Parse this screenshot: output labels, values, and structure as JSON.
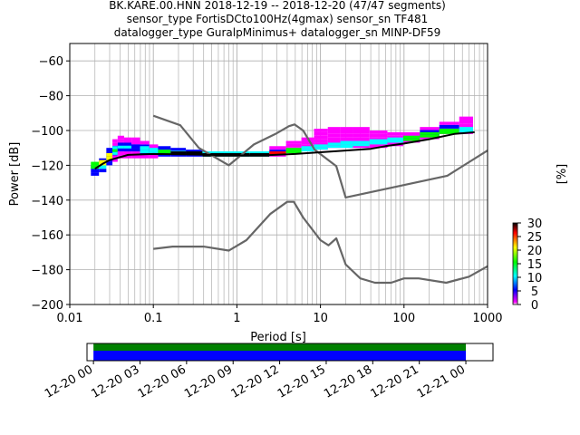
{
  "title": {
    "line1": "BK.KARE.00.HNN   2018-12-19 -- 2018-12-20  (47/47 segments)",
    "line2": "sensor_type FortisDCto100Hz(4gmax) sensor_sn TF481",
    "line3": "datalogger_type GuralpMinimus+ datalogger_sn MINP-DF59"
  },
  "chart_data": [
    {
      "type": "heatmap",
      "xlabel": "Period [s]",
      "ylabel": "Power [dB]",
      "xscale": "log",
      "xlim": [
        0.01,
        1000
      ],
      "ylim": [
        -200,
        -50
      ],
      "x_ticks": [
        {
          "value": 0.01,
          "label": "0.01"
        },
        {
          "value": 0.1,
          "label": "0.1"
        },
        {
          "value": 1,
          "label": "1"
        },
        {
          "value": 10,
          "label": "10"
        },
        {
          "value": 100,
          "label": "100"
        },
        {
          "value": 1000,
          "label": "1000"
        }
      ],
      "y_ticks": [
        {
          "value": -60,
          "label": "−60"
        },
        {
          "value": -80,
          "label": "−80"
        },
        {
          "value": -100,
          "label": "−100"
        },
        {
          "value": -120,
          "label": "−120"
        },
        {
          "value": -140,
          "label": "−140"
        },
        {
          "value": -160,
          "label": "−160"
        },
        {
          "value": -180,
          "label": "−180"
        },
        {
          "value": -200,
          "label": "−200"
        }
      ],
      "grid": true,
      "colorbar": {
        "label": "[%]",
        "range": [
          0,
          30
        ],
        "ticks": [
          {
            "value": 0,
            "label": "0"
          },
          {
            "value": 5,
            "label": "5"
          },
          {
            "value": 10,
            "label": "10"
          },
          {
            "value": 15,
            "label": "15"
          },
          {
            "value": 20,
            "label": "20"
          },
          {
            "value": 25,
            "label": "25"
          },
          {
            "value": 30,
            "label": "30"
          }
        ],
        "colors": [
          "#ffffff",
          "#ff00ff",
          "#0000ff",
          "#00ffff",
          "#00ff00",
          "#ffff00",
          "#ff0000",
          "#000000"
        ]
      },
      "series": [
        {
          "name": "",
          "color": "#666666",
          "points": [
            [
              0.1,
              -168
            ],
            [
              0.17,
              -166.7
            ],
            [
              0.4,
              -166.7
            ],
            [
              0.8,
              -169
            ],
            [
              1.3,
              -163
            ],
            [
              2.5,
              -148
            ],
            [
              4.0,
              -141
            ],
            [
              4.8,
              -141
            ],
            [
              6.2,
              -150
            ],
            [
              10,
              -163
            ],
            [
              12.5,
              -166
            ],
            [
              15.5,
              -162
            ],
            [
              20,
              -177
            ],
            [
              30,
              -185
            ],
            [
              45,
              -187.5
            ],
            [
              70,
              -187.5
            ],
            [
              100,
              -185
            ],
            [
              150,
              -185
            ],
            [
              320,
              -187.5
            ],
            [
              600,
              -184
            ],
            [
              1000,
              -178
            ]
          ]
        },
        {
          "name": "",
          "color": "#666666",
          "points": [
            [
              0.1,
              -91.5
            ],
            [
              0.21,
              -97
            ],
            [
              0.35,
              -110
            ],
            [
              0.8,
              -120
            ],
            [
              1.6,
              -108
            ],
            [
              2.9,
              -102
            ],
            [
              4.2,
              -97.5
            ],
            [
              4.9,
              -96.5
            ],
            [
              6.2,
              -100
            ],
            [
              8.5,
              -111
            ],
            [
              15.5,
              -120.5
            ],
            [
              20,
              -138.5
            ],
            [
              330,
              -126
            ],
            [
              1000,
              -111.5
            ]
          ]
        },
        {
          "name": "",
          "color": "#000000",
          "points": [
            [
              0.02,
              -122
            ],
            [
              0.025,
              -119
            ],
            [
              0.03,
              -117
            ],
            [
              0.05,
              -114
            ],
            [
              0.1,
              -113.5
            ],
            [
              0.3,
              -113.8
            ],
            [
              0.5,
              -114
            ],
            [
              1,
              -114.3
            ],
            [
              2,
              -114.3
            ],
            [
              5,
              -113.5
            ],
            [
              10,
              -112.5
            ],
            [
              20,
              -111.5
            ],
            [
              40,
              -110.5
            ],
            [
              60,
              -109
            ],
            [
              100,
              -107.5
            ],
            [
              200,
              -105
            ],
            [
              400,
              -102
            ],
            [
              700,
              -101
            ]
          ]
        }
      ],
      "density_columns": [
        {
          "period": 0.02,
          "bands": [
            [
              -126,
              -120,
              8
            ],
            [
              -122,
              -118,
              22
            ]
          ]
        },
        {
          "period": 0.025,
          "bands": [
            [
              -124,
              -116,
              10
            ],
            [
              -120,
              -117,
              25
            ]
          ]
        },
        {
          "period": 0.03,
          "bands": [
            [
              -120,
              -110,
              8
            ],
            [
              -117,
              -113,
              24
            ]
          ]
        },
        {
          "period": 0.035,
          "bands": [
            [
              -118,
              -105,
              6
            ],
            [
              -114,
              -109,
              14
            ]
          ]
        },
        {
          "period": 0.04,
          "bands": [
            [
              -116,
              -103,
              5
            ],
            [
              -112,
              -107,
              12
            ]
          ]
        },
        {
          "period": 0.05,
          "bands": [
            [
              -116,
              -104,
              5
            ],
            [
              -112,
              -107,
              11
            ]
          ]
        },
        {
          "period": 0.06,
          "bands": [
            [
              -116,
              -104,
              5
            ],
            [
              -112,
              -108,
              10
            ]
          ]
        },
        {
          "period": 0.08,
          "bands": [
            [
              -116,
              -106,
              6
            ],
            [
              -113,
              -109,
              14
            ]
          ]
        },
        {
          "period": 0.1,
          "bands": [
            [
              -116,
              -108,
              6
            ],
            [
              -114,
              -110,
              16
            ]
          ]
        },
        {
          "period": 0.13,
          "bands": [
            [
              -115,
              -109,
              8
            ],
            [
              -114,
              -111,
              20
            ]
          ]
        },
        {
          "period": 0.2,
          "bands": [
            [
              -115,
              -110,
              10
            ],
            [
              -114,
              -112,
              26
            ]
          ]
        },
        {
          "period": 0.3,
          "bands": [
            [
              -115,
              -111,
              10
            ],
            [
              -114,
              -112,
              26
            ]
          ]
        },
        {
          "period": 0.5,
          "bands": [
            [
              -115,
              -112,
              12
            ],
            [
              -115,
              -113,
              28
            ]
          ]
        },
        {
          "period": 1,
          "bands": [
            [
              -115,
              -112,
              12
            ],
            [
              -115,
              -113,
              28
            ]
          ]
        },
        {
          "period": 2,
          "bands": [
            [
              -115,
              -112,
              12
            ],
            [
              -115,
              -113,
              28
            ]
          ]
        },
        {
          "period": 3,
          "bands": [
            [
              -115,
              -109,
              6
            ],
            [
              -114,
              -112,
              22
            ]
          ]
        },
        {
          "period": 5,
          "bands": [
            [
              -113,
              -106,
              3
            ],
            [
              -113,
              -110,
              18
            ]
          ]
        },
        {
          "period": 7,
          "bands": [
            [
              -112,
              -104,
              3
            ],
            [
              -112,
              -109,
              16
            ]
          ]
        },
        {
          "period": 10,
          "bands": [
            [
              -111,
              -99,
              2
            ],
            [
              -111,
              -108,
              14
            ]
          ]
        },
        {
          "period": 15,
          "bands": [
            [
              -110,
              -98,
              2
            ],
            [
              -110,
              -107,
              14
            ]
          ]
        },
        {
          "period": 20,
          "bands": [
            [
              -110,
              -98,
              2
            ],
            [
              -110,
              -106,
              14
            ]
          ]
        },
        {
          "period": 30,
          "bands": [
            [
              -110,
              -98,
              2
            ],
            [
              -109,
              -106,
              16
            ]
          ]
        },
        {
          "period": 50,
          "bands": [
            [
              -110,
              -100,
              3
            ],
            [
              -108,
              -105,
              16
            ]
          ]
        },
        {
          "period": 80,
          "bands": [
            [
              -109,
              -101,
              4
            ],
            [
              -107,
              -104,
              16
            ]
          ]
        },
        {
          "period": 120,
          "bands": [
            [
              -107,
              -101,
              6
            ],
            [
              -106,
              -103,
              18
            ]
          ]
        },
        {
          "period": 200,
          "bands": [
            [
              -105,
              -98,
              6
            ],
            [
              -104,
              -101,
              20
            ]
          ]
        },
        {
          "period": 350,
          "bands": [
            [
              -102,
              -95,
              5
            ],
            [
              -102,
              -99,
              20
            ]
          ]
        },
        {
          "period": 600,
          "bands": [
            [
              -102,
              -92,
              3
            ],
            [
              -101,
              -98,
              16
            ]
          ]
        }
      ]
    },
    {
      "type": "bar",
      "orientation": "horizontal",
      "title": "",
      "xlim": [
        "2018-12-19 23:35",
        "2018-12-21 01:45"
      ],
      "x_ticks": [
        "12-20 00",
        "12-20 03",
        "12-20 06",
        "12-20 09",
        "12-20 12",
        "12-20 15",
        "12-20 18",
        "12-20 21",
        "12-21 00"
      ],
      "series": [
        {
          "color": "#008000",
          "start": "2018-12-20 00:00",
          "end": "2018-12-21 00:00"
        },
        {
          "color": "#0000ff",
          "start": "2018-12-20 00:00",
          "end": "2018-12-21 00:00"
        }
      ]
    }
  ]
}
